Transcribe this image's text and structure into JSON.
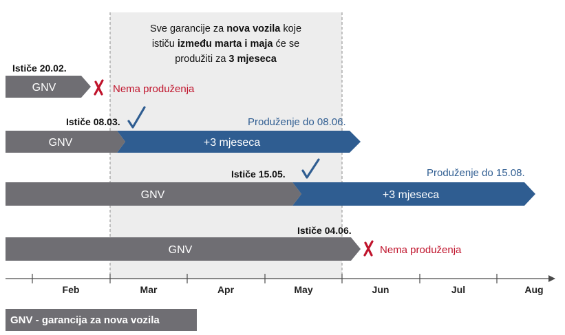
{
  "colors": {
    "gray_bar": "#6f6e73",
    "blue_bar": "#2f5d91",
    "blue_text": "#2f5d91",
    "red_text": "#c0142c",
    "shade": "#ededed",
    "axis": "#4a4a4a",
    "legend_bg": "#6f6e73"
  },
  "note": {
    "line1_pre": "Sve garancije za ",
    "line1_bold": "nova vozila",
    "line1_post": " koje",
    "line2_pre": "ističu ",
    "line2_bold": "između marta i maja",
    "line2_post": " će se",
    "line3_pre": "produžiti za ",
    "line3_bold": "3 mjeseca"
  },
  "rows": [
    {
      "expiry_label": "Ističe 20.02.",
      "gnv_label": "GNV",
      "outcome_icon": "red-x-icon",
      "outcome_text": "Nema produženja"
    },
    {
      "expiry_label": "Ističe 08.03.",
      "gnv_label": "GNV",
      "outcome_icon": "blue-check-icon",
      "extension_label": "+3 mjeseca",
      "outcome_text": "Produženje do 08.06."
    },
    {
      "expiry_label": "Ističe 15.05.",
      "gnv_label": "GNV",
      "outcome_icon": "blue-check-icon",
      "extension_label": "+3 mjeseca",
      "outcome_text": "Produženje do 15.08."
    },
    {
      "expiry_label": "Ističe 04.06.",
      "gnv_label": "GNV",
      "outcome_icon": "red-x-icon",
      "outcome_text": "Nema produženja"
    }
  ],
  "axis": {
    "months": [
      "Feb",
      "Mar",
      "Apr",
      "May",
      "Jun",
      "Jul",
      "Aug"
    ]
  },
  "legend": {
    "text": "GNV - garancija za nova vozila"
  }
}
